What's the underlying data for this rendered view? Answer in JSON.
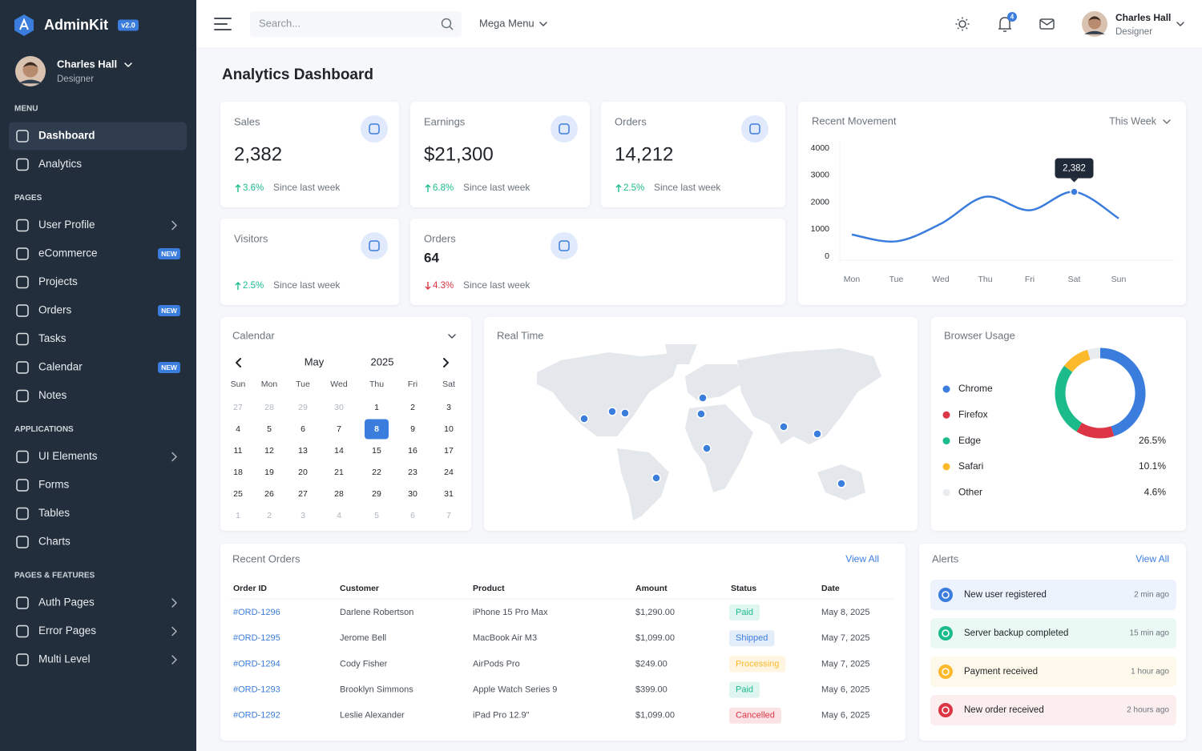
{
  "sidebar": {
    "brand": "AdminKit",
    "version": "v2.0",
    "user": {
      "name": "Charles Hall",
      "role": "Designer"
    },
    "sections": [
      {
        "title": "MENU",
        "items": [
          {
            "label": "Dashboard",
            "active": true
          },
          {
            "label": "Analytics"
          }
        ]
      },
      {
        "title": "PAGES",
        "items": [
          {
            "label": "User Profile",
            "submenu": true
          },
          {
            "label": "eCommerce",
            "badge": "NEW"
          },
          {
            "label": "Projects"
          },
          {
            "label": "Orders",
            "badge": "NEW"
          },
          {
            "label": "Tasks"
          },
          {
            "label": "Calendar",
            "badge": "NEW"
          },
          {
            "label": "Notes"
          }
        ]
      },
      {
        "title": "APPLICATIONS",
        "items": [
          {
            "label": "UI Elements",
            "submenu": true
          },
          {
            "label": "Forms"
          },
          {
            "label": "Tables"
          },
          {
            "label": "Charts"
          }
        ]
      },
      {
        "title": "PAGES & FEATURES",
        "items": [
          {
            "label": "Auth Pages",
            "submenu": true
          },
          {
            "label": "Error Pages",
            "submenu": true
          },
          {
            "label": "Multi Level",
            "submenu": true
          }
        ]
      }
    ]
  },
  "topbar": {
    "search_placeholder": "Search...",
    "mega_menu": "Mega Menu",
    "notification_count": 4,
    "user": {
      "name": "Charles Hall",
      "role": "Designer"
    }
  },
  "page_title": "Analytics Dashboard",
  "stats": [
    {
      "title": "Sales",
      "value": "2,382",
      "change": "3.6%",
      "trend": "up",
      "note": "Since last week"
    },
    {
      "title": "Earnings",
      "value": "$21,300",
      "change": "6.8%",
      "trend": "up",
      "note": "Since last week"
    },
    {
      "title": "Orders",
      "value": "14,212",
      "change": "2.5%",
      "trend": "up",
      "note": "Since last week"
    },
    {
      "title": "Visitors",
      "change": "2.5%",
      "trend": "up",
      "note": "Since last week"
    },
    {
      "title": "Orders",
      "value": "64",
      "change": "4.3%",
      "trend": "down",
      "note": "Since last week"
    }
  ],
  "chart_data": [
    {
      "type": "line",
      "title": "Recent Movement",
      "period": "This Week",
      "categories": [
        "Mon",
        "Tue",
        "Wed",
        "Thu",
        "Fri",
        "Sat",
        "Sun"
      ],
      "values": [
        800,
        550,
        1200,
        2200,
        1700,
        2382,
        1400
      ],
      "value_labels": [
        null,
        null,
        null,
        null,
        null,
        "2,382",
        null
      ],
      "color": "#3b7ddd",
      "ylim": [
        0,
        4000
      ],
      "yticks": [
        0,
        1000,
        2000,
        3000,
        4000
      ],
      "grid": false
    },
    {
      "type": "doughnut",
      "title": "Browser Usage",
      "categories": [
        "Chrome",
        "Firefox",
        "Edge",
        "Safari",
        "Other"
      ],
      "values": [
        45,
        13.8,
        26.5,
        10.1,
        4.6
      ],
      "value_labels": [
        null,
        null,
        "26.5%",
        "10.1%",
        "4.6%"
      ],
      "colors": [
        "#3b7ddd",
        "#dc3545",
        "#1cbb8c",
        "#fcb92c",
        "#e9ecef"
      ]
    }
  ],
  "calendar": {
    "title": "Calendar",
    "month": "May",
    "year": 2025,
    "weekdays": [
      "Sun",
      "Mon",
      "Tue",
      "Wed",
      "Thu",
      "Fri",
      "Sat"
    ],
    "leading_days": [
      27,
      28,
      29,
      30
    ],
    "days": [
      1,
      2,
      3,
      4,
      5,
      6,
      7,
      8,
      9,
      10,
      11,
      12,
      13,
      14,
      15,
      16,
      17,
      18,
      19,
      20,
      21,
      22,
      23,
      24,
      25,
      26,
      27,
      28,
      29,
      30,
      31
    ],
    "trailing_days": [
      1,
      2,
      3,
      4,
      5,
      6,
      7
    ],
    "selected": 8
  },
  "real_time": {
    "title": "Real Time"
  },
  "orders_table": {
    "title": "Recent Orders",
    "action": "View All",
    "columns": [
      "Order ID",
      "Customer",
      "Product",
      "Amount",
      "Status",
      "Date"
    ],
    "rows": [
      [
        "#ORD-1296",
        "Darlene Robertson",
        "iPhone 15 Pro Max",
        "$1,290.00",
        "Paid",
        "May 8, 2025"
      ],
      [
        "#ORD-1295",
        "Jerome Bell",
        "MacBook Air M3",
        "$1,099.00",
        "Shipped",
        "May 7, 2025"
      ],
      [
        "#ORD-1294",
        "Cody Fisher",
        "AirPods Pro",
        "$249.00",
        "Processing",
        "May 7, 2025"
      ],
      [
        "#ORD-1293",
        "Brooklyn Simmons",
        "Apple Watch Series 9",
        "$399.00",
        "Paid",
        "May 6, 2025"
      ],
      [
        "#ORD-1292",
        "Leslie Alexander",
        "iPad Pro 12.9\"",
        "$1,099.00",
        "Cancelled",
        "May 6, 2025"
      ]
    ],
    "status_colors": [
      "#1cbb8c",
      "#3b7ddd",
      "#fcb92c",
      "#1cbb8c",
      "#dc3545"
    ]
  },
  "alerts": {
    "title": "Alerts",
    "action": "View All",
    "items": [
      {
        "text": "New user registered",
        "time": "2 min ago",
        "color": "#3b7ddd"
      },
      {
        "text": "Server backup completed",
        "time": "15 min ago",
        "color": "#1cbb8c"
      },
      {
        "text": "Payment received",
        "time": "1 hour ago",
        "color": "#fcb92c"
      },
      {
        "text": "New order received",
        "time": "2 hours ago",
        "color": "#dc3545"
      }
    ]
  }
}
